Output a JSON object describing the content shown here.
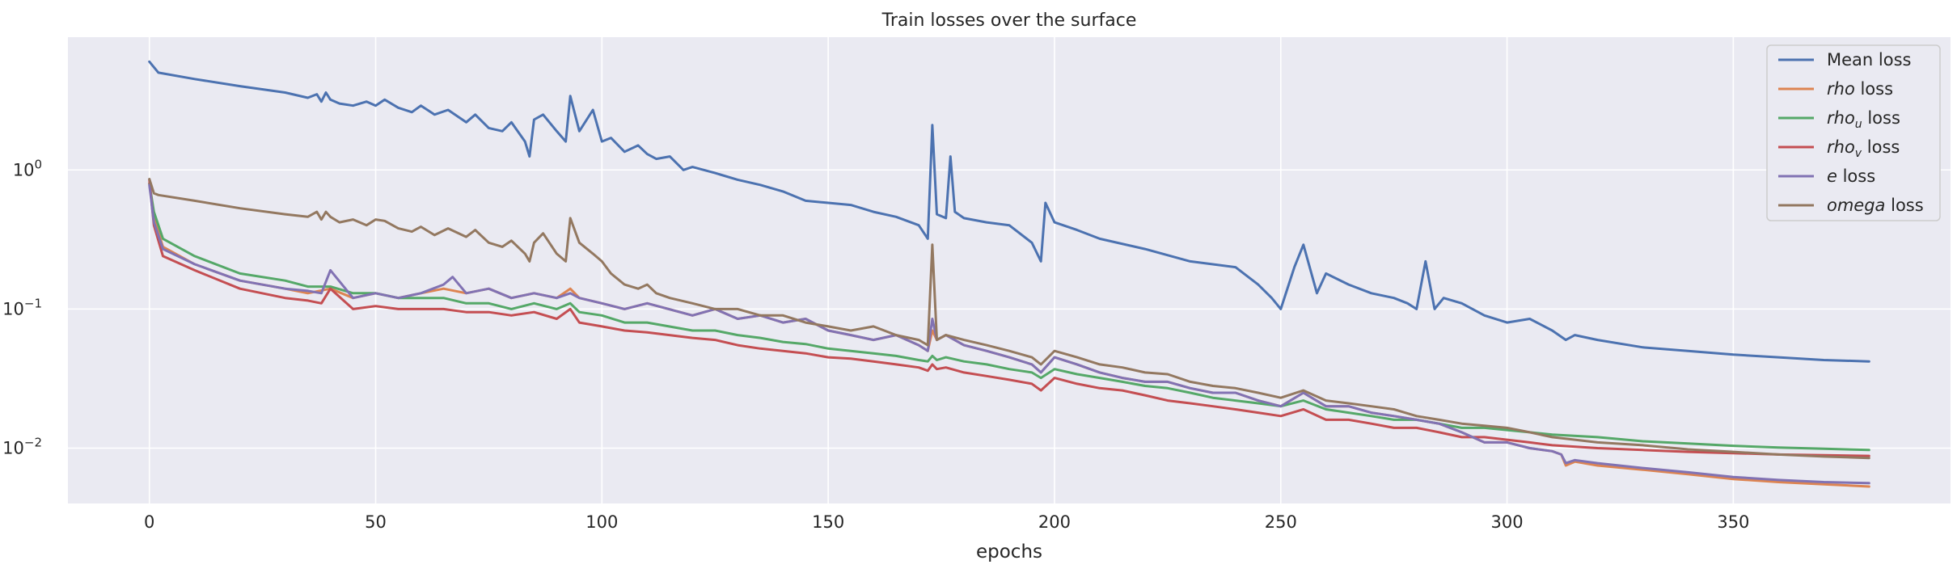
{
  "chart_data": {
    "type": "line",
    "title": "Train losses over the surface",
    "xlabel": "epochs",
    "ylabel": "",
    "yscale": "log",
    "xlim": [
      -18,
      398
    ],
    "ylim": [
      0.004,
      9
    ],
    "xticks": [
      0,
      50,
      100,
      150,
      200,
      250,
      300,
      350
    ],
    "yticks": [
      {
        "value": 0.01,
        "base": "10",
        "exp": "−2"
      },
      {
        "value": 0.1,
        "base": "10",
        "exp": "−1"
      },
      {
        "value": 1,
        "base": "10",
        "exp": "0"
      }
    ],
    "grid": true,
    "legend_position": "top-right",
    "series": [
      {
        "name": "Mean loss",
        "label_main": "Mean",
        "label_sub": "",
        "label_rest": " loss",
        "color": "#4c72b0",
        "x": [
          0,
          2,
          10,
          20,
          30,
          35,
          37,
          38,
          39,
          40,
          42,
          45,
          48,
          50,
          52,
          55,
          58,
          60,
          63,
          66,
          70,
          72,
          75,
          78,
          80,
          83,
          84,
          85,
          87,
          90,
          92,
          93,
          95,
          98,
          100,
          102,
          105,
          108,
          110,
          112,
          115,
          118,
          120,
          125,
          130,
          135,
          140,
          145,
          150,
          155,
          160,
          165,
          170,
          172,
          173,
          174,
          176,
          177,
          178,
          180,
          185,
          190,
          195,
          197,
          198,
          200,
          205,
          210,
          220,
          230,
          240,
          245,
          248,
          250,
          253,
          255,
          258,
          260,
          265,
          270,
          275,
          278,
          280,
          282,
          284,
          286,
          290,
          295,
          300,
          305,
          310,
          313,
          315,
          320,
          330,
          340,
          350,
          360,
          370,
          380
        ],
        "values": [
          6.0,
          5.0,
          4.5,
          4.0,
          3.6,
          3.3,
          3.5,
          3.1,
          3.6,
          3.2,
          3.0,
          2.9,
          3.1,
          2.9,
          3.2,
          2.8,
          2.6,
          2.9,
          2.5,
          2.7,
          2.2,
          2.5,
          2.0,
          1.9,
          2.2,
          1.6,
          1.25,
          2.3,
          2.5,
          1.9,
          1.6,
          3.4,
          1.9,
          2.7,
          1.6,
          1.7,
          1.35,
          1.5,
          1.3,
          1.2,
          1.25,
          1.0,
          1.05,
          0.95,
          0.85,
          0.78,
          0.7,
          0.6,
          0.58,
          0.56,
          0.5,
          0.46,
          0.4,
          0.32,
          2.1,
          0.48,
          0.45,
          1.25,
          0.5,
          0.45,
          0.42,
          0.4,
          0.3,
          0.22,
          0.58,
          0.42,
          0.37,
          0.32,
          0.27,
          0.22,
          0.2,
          0.15,
          0.12,
          0.1,
          0.2,
          0.29,
          0.13,
          0.18,
          0.15,
          0.13,
          0.12,
          0.11,
          0.1,
          0.22,
          0.1,
          0.12,
          0.11,
          0.09,
          0.08,
          0.085,
          0.07,
          0.06,
          0.065,
          0.06,
          0.053,
          0.05,
          0.047,
          0.045,
          0.043,
          0.042
        ]
      },
      {
        "name": "rho loss",
        "label_main": "rho",
        "label_sub": "",
        "label_rest": " loss",
        "color": "#dd8452",
        "x": [
          0,
          1,
          3,
          10,
          20,
          30,
          35,
          40,
          45,
          50,
          55,
          60,
          65,
          70,
          75,
          80,
          85,
          90,
          93,
          95,
          100,
          105,
          110,
          120,
          125,
          130,
          135,
          140,
          145,
          150,
          155,
          160,
          165,
          170,
          172,
          173,
          174,
          176,
          180,
          185,
          190,
          195,
          197,
          200,
          205,
          210,
          215,
          220,
          225,
          230,
          235,
          240,
          245,
          250,
          255,
          260,
          265,
          270,
          275,
          280,
          285,
          290,
          295,
          300,
          305,
          310,
          312,
          313,
          315,
          320,
          330,
          340,
          350,
          360,
          370,
          380
        ],
        "values": [
          0.8,
          0.45,
          0.28,
          0.21,
          0.16,
          0.14,
          0.13,
          0.14,
          0.12,
          0.13,
          0.12,
          0.13,
          0.14,
          0.13,
          0.14,
          0.12,
          0.13,
          0.12,
          0.14,
          0.12,
          0.11,
          0.1,
          0.11,
          0.09,
          0.1,
          0.085,
          0.09,
          0.08,
          0.085,
          0.07,
          0.065,
          0.06,
          0.065,
          0.055,
          0.05,
          0.07,
          0.06,
          0.065,
          0.055,
          0.05,
          0.045,
          0.04,
          0.035,
          0.045,
          0.04,
          0.035,
          0.032,
          0.03,
          0.03,
          0.027,
          0.025,
          0.025,
          0.022,
          0.02,
          0.025,
          0.02,
          0.02,
          0.018,
          0.017,
          0.016,
          0.015,
          0.013,
          0.011,
          0.011,
          0.01,
          0.0095,
          0.009,
          0.0075,
          0.008,
          0.0075,
          0.007,
          0.0065,
          0.006,
          0.0057,
          0.0055,
          0.0053
        ]
      },
      {
        "name": "rho_u loss",
        "label_main": "rho",
        "label_sub": "u",
        "label_rest": " loss",
        "color": "#55a868",
        "x": [
          0,
          1,
          3,
          10,
          20,
          30,
          35,
          40,
          45,
          50,
          55,
          60,
          65,
          70,
          75,
          80,
          85,
          90,
          93,
          95,
          100,
          105,
          110,
          120,
          125,
          130,
          135,
          140,
          145,
          150,
          155,
          160,
          165,
          170,
          172,
          173,
          174,
          176,
          180,
          185,
          190,
          195,
          197,
          200,
          205,
          210,
          215,
          220,
          225,
          230,
          235,
          240,
          245,
          250,
          255,
          260,
          265,
          270,
          275,
          280,
          285,
          290,
          295,
          300,
          305,
          310,
          320,
          330,
          340,
          350,
          360,
          370,
          380
        ],
        "values": [
          0.8,
          0.5,
          0.32,
          0.24,
          0.18,
          0.16,
          0.145,
          0.145,
          0.13,
          0.13,
          0.12,
          0.12,
          0.12,
          0.11,
          0.11,
          0.1,
          0.11,
          0.1,
          0.11,
          0.095,
          0.09,
          0.08,
          0.08,
          0.07,
          0.07,
          0.065,
          0.062,
          0.058,
          0.056,
          0.052,
          0.05,
          0.048,
          0.046,
          0.043,
          0.042,
          0.046,
          0.043,
          0.045,
          0.042,
          0.04,
          0.037,
          0.035,
          0.032,
          0.037,
          0.034,
          0.032,
          0.03,
          0.028,
          0.027,
          0.025,
          0.023,
          0.022,
          0.021,
          0.02,
          0.022,
          0.019,
          0.018,
          0.017,
          0.016,
          0.016,
          0.015,
          0.014,
          0.014,
          0.0135,
          0.013,
          0.0125,
          0.012,
          0.0112,
          0.0108,
          0.0104,
          0.0101,
          0.0099,
          0.0097
        ]
      },
      {
        "name": "rho_v loss",
        "label_main": "rho",
        "label_sub": "v",
        "label_rest": " loss",
        "color": "#c44e52",
        "x": [
          0,
          1,
          3,
          10,
          20,
          30,
          35,
          38,
          40,
          45,
          50,
          55,
          60,
          65,
          70,
          75,
          80,
          85,
          90,
          93,
          95,
          100,
          105,
          110,
          120,
          125,
          130,
          135,
          140,
          145,
          150,
          155,
          160,
          165,
          170,
          172,
          173,
          174,
          176,
          180,
          185,
          190,
          195,
          197,
          200,
          205,
          210,
          215,
          220,
          225,
          230,
          235,
          240,
          245,
          250,
          255,
          260,
          265,
          270,
          275,
          280,
          285,
          290,
          295,
          300,
          305,
          310,
          320,
          330,
          340,
          350,
          360,
          370,
          380
        ],
        "values": [
          0.85,
          0.4,
          0.24,
          0.19,
          0.14,
          0.12,
          0.115,
          0.11,
          0.14,
          0.1,
          0.105,
          0.1,
          0.1,
          0.1,
          0.095,
          0.095,
          0.09,
          0.095,
          0.085,
          0.1,
          0.08,
          0.075,
          0.07,
          0.068,
          0.062,
          0.06,
          0.055,
          0.052,
          0.05,
          0.048,
          0.045,
          0.044,
          0.042,
          0.04,
          0.038,
          0.036,
          0.04,
          0.037,
          0.038,
          0.035,
          0.033,
          0.031,
          0.029,
          0.026,
          0.032,
          0.029,
          0.027,
          0.026,
          0.024,
          0.022,
          0.021,
          0.02,
          0.019,
          0.018,
          0.017,
          0.019,
          0.016,
          0.016,
          0.015,
          0.014,
          0.014,
          0.013,
          0.012,
          0.012,
          0.0115,
          0.011,
          0.0105,
          0.01,
          0.0097,
          0.0094,
          0.0092,
          0.009,
          0.0089,
          0.0088
        ]
      },
      {
        "name": "e loss",
        "label_main": "e",
        "label_sub": "",
        "label_rest": " loss",
        "color": "#8172b3",
        "x": [
          0,
          1,
          3,
          10,
          20,
          30,
          35,
          38,
          40,
          45,
          50,
          55,
          60,
          65,
          67,
          70,
          75,
          80,
          85,
          90,
          93,
          95,
          100,
          105,
          110,
          120,
          125,
          130,
          135,
          140,
          145,
          150,
          155,
          160,
          165,
          170,
          172,
          173,
          174,
          176,
          180,
          185,
          190,
          195,
          197,
          200,
          205,
          210,
          215,
          220,
          225,
          230,
          235,
          240,
          245,
          250,
          255,
          260,
          265,
          270,
          275,
          280,
          285,
          290,
          295,
          300,
          305,
          310,
          312,
          313,
          315,
          320,
          330,
          340,
          350,
          360,
          370,
          380
        ],
        "values": [
          0.78,
          0.42,
          0.27,
          0.21,
          0.16,
          0.14,
          0.135,
          0.13,
          0.19,
          0.12,
          0.13,
          0.12,
          0.13,
          0.15,
          0.17,
          0.13,
          0.14,
          0.12,
          0.13,
          0.12,
          0.13,
          0.12,
          0.11,
          0.1,
          0.11,
          0.09,
          0.1,
          0.085,
          0.09,
          0.08,
          0.085,
          0.07,
          0.065,
          0.06,
          0.065,
          0.055,
          0.05,
          0.085,
          0.06,
          0.065,
          0.055,
          0.05,
          0.045,
          0.04,
          0.035,
          0.045,
          0.04,
          0.035,
          0.032,
          0.03,
          0.03,
          0.027,
          0.025,
          0.025,
          0.022,
          0.02,
          0.025,
          0.02,
          0.02,
          0.018,
          0.017,
          0.016,
          0.015,
          0.013,
          0.011,
          0.011,
          0.01,
          0.0095,
          0.009,
          0.0078,
          0.0082,
          0.0078,
          0.0072,
          0.0067,
          0.0062,
          0.0059,
          0.0057,
          0.0056
        ]
      },
      {
        "name": "omega loss",
        "label_main": "omega",
        "label_sub": "",
        "label_rest": " loss",
        "color": "#937860",
        "x": [
          0,
          1,
          2,
          10,
          20,
          30,
          35,
          37,
          38,
          39,
          40,
          42,
          45,
          48,
          50,
          52,
          55,
          58,
          60,
          63,
          66,
          70,
          72,
          75,
          78,
          80,
          83,
          84,
          85,
          87,
          90,
          92,
          93,
          95,
          98,
          100,
          102,
          105,
          108,
          110,
          112,
          115,
          120,
          125,
          130,
          135,
          140,
          145,
          150,
          155,
          160,
          165,
          170,
          172,
          173,
          174,
          176,
          180,
          185,
          190,
          195,
          197,
          200,
          205,
          210,
          215,
          220,
          225,
          230,
          235,
          240,
          245,
          250,
          255,
          260,
          265,
          270,
          275,
          280,
          285,
          290,
          295,
          300,
          305,
          310,
          315,
          320,
          330,
          340,
          350,
          360,
          370,
          380
        ],
        "values": [
          0.86,
          0.68,
          0.66,
          0.6,
          0.53,
          0.48,
          0.46,
          0.5,
          0.44,
          0.5,
          0.46,
          0.42,
          0.44,
          0.4,
          0.44,
          0.43,
          0.38,
          0.36,
          0.39,
          0.34,
          0.38,
          0.33,
          0.37,
          0.3,
          0.28,
          0.31,
          0.25,
          0.22,
          0.3,
          0.35,
          0.25,
          0.22,
          0.45,
          0.3,
          0.25,
          0.22,
          0.18,
          0.15,
          0.14,
          0.15,
          0.13,
          0.12,
          0.11,
          0.1,
          0.1,
          0.09,
          0.09,
          0.08,
          0.075,
          0.07,
          0.075,
          0.065,
          0.06,
          0.055,
          0.29,
          0.06,
          0.065,
          0.06,
          0.055,
          0.05,
          0.045,
          0.04,
          0.05,
          0.045,
          0.04,
          0.038,
          0.035,
          0.034,
          0.03,
          0.028,
          0.027,
          0.025,
          0.023,
          0.026,
          0.022,
          0.021,
          0.02,
          0.019,
          0.017,
          0.016,
          0.015,
          0.0145,
          0.014,
          0.013,
          0.012,
          0.0115,
          0.011,
          0.0105,
          0.0098,
          0.0094,
          0.009,
          0.0087,
          0.0085
        ]
      }
    ]
  }
}
